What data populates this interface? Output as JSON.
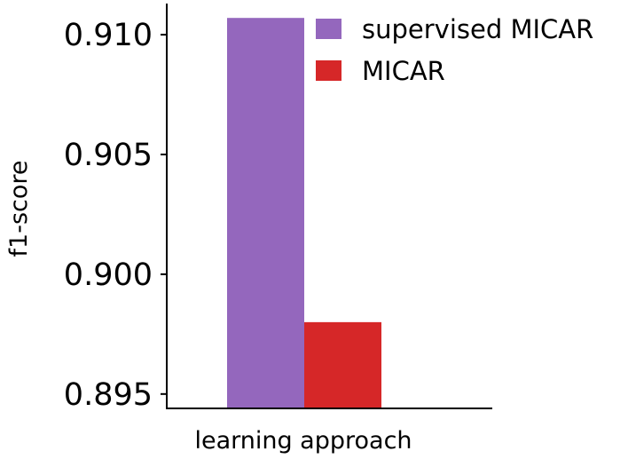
{
  "chart_data": {
    "type": "bar",
    "title": "",
    "xlabel": "learning approach",
    "ylabel": "f1-score",
    "ylim": [
      0.8944,
      0.9113
    ],
    "yticks": [
      0.895,
      0.9,
      0.905,
      0.91
    ],
    "ytick_labels": [
      "0.895",
      "0.900",
      "0.905",
      "0.910"
    ],
    "grid": false,
    "legend_position": "top-right",
    "series": [
      {
        "name": "supervised MICAR",
        "value": 0.9107,
        "color": "#9467bd"
      },
      {
        "name": "MICAR",
        "value": 0.898,
        "color": "#d62728"
      }
    ]
  }
}
